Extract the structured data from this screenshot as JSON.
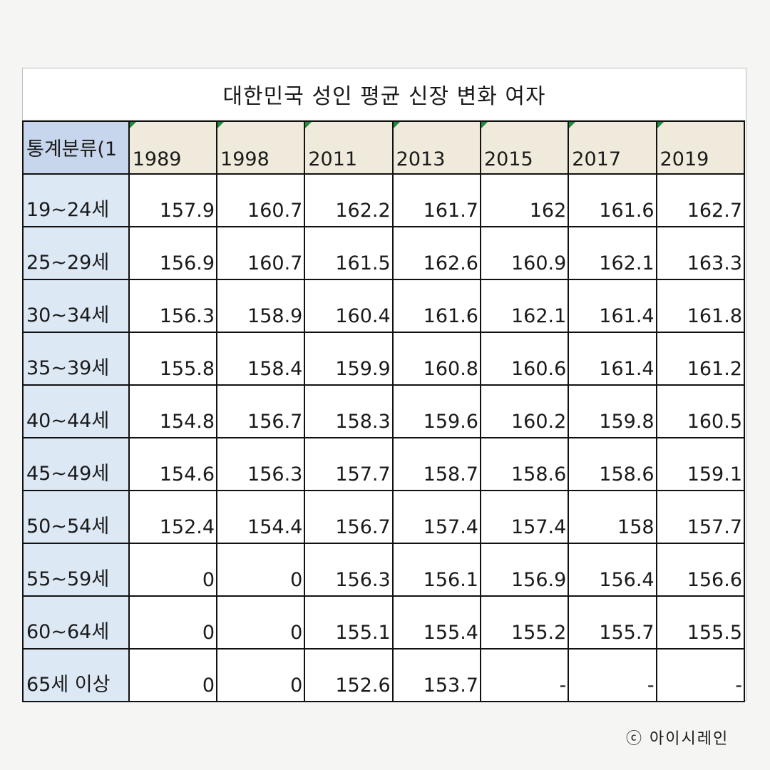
{
  "title": "대한민국 성인 평균 신장 변화 여자",
  "corner_label": "통계분류(1",
  "years": [
    "1989",
    "1998",
    "2011",
    "2013",
    "2015",
    "2017",
    "2019"
  ],
  "rows": [
    {
      "label": "19~24세",
      "values": [
        "157.9",
        "160.7",
        "162.2",
        "161.7",
        "162",
        "161.6",
        "162.7"
      ]
    },
    {
      "label": "25~29세",
      "values": [
        "156.9",
        "160.7",
        "161.5",
        "162.6",
        "160.9",
        "162.1",
        "163.3"
      ]
    },
    {
      "label": "30~34세",
      "values": [
        "156.3",
        "158.9",
        "160.4",
        "161.6",
        "162.1",
        "161.4",
        "161.8"
      ]
    },
    {
      "label": "35~39세",
      "values": [
        "155.8",
        "158.4",
        "159.9",
        "160.8",
        "160.6",
        "161.4",
        "161.2"
      ]
    },
    {
      "label": "40~44세",
      "values": [
        "154.8",
        "156.7",
        "158.3",
        "159.6",
        "160.2",
        "159.8",
        "160.5"
      ]
    },
    {
      "label": "45~49세",
      "values": [
        "154.6",
        "156.3",
        "157.7",
        "158.7",
        "158.6",
        "158.6",
        "159.1"
      ]
    },
    {
      "label": "50~54세",
      "values": [
        "152.4",
        "154.4",
        "156.7",
        "157.4",
        "157.4",
        "158",
        "157.7"
      ]
    },
    {
      "label": "55~59세",
      "values": [
        "0",
        "0",
        "156.3",
        "156.1",
        "156.9",
        "156.4",
        "156.6"
      ]
    },
    {
      "label": "60~64세",
      "values": [
        "0",
        "0",
        "155.1",
        "155.4",
        "155.2",
        "155.7",
        "155.5"
      ]
    },
    {
      "label": "65세 이상",
      "values": [
        "0",
        "0",
        "152.6",
        "153.7",
        "-",
        "-",
        "-"
      ]
    }
  ],
  "watermark": "ⓒ 아이시레인"
}
